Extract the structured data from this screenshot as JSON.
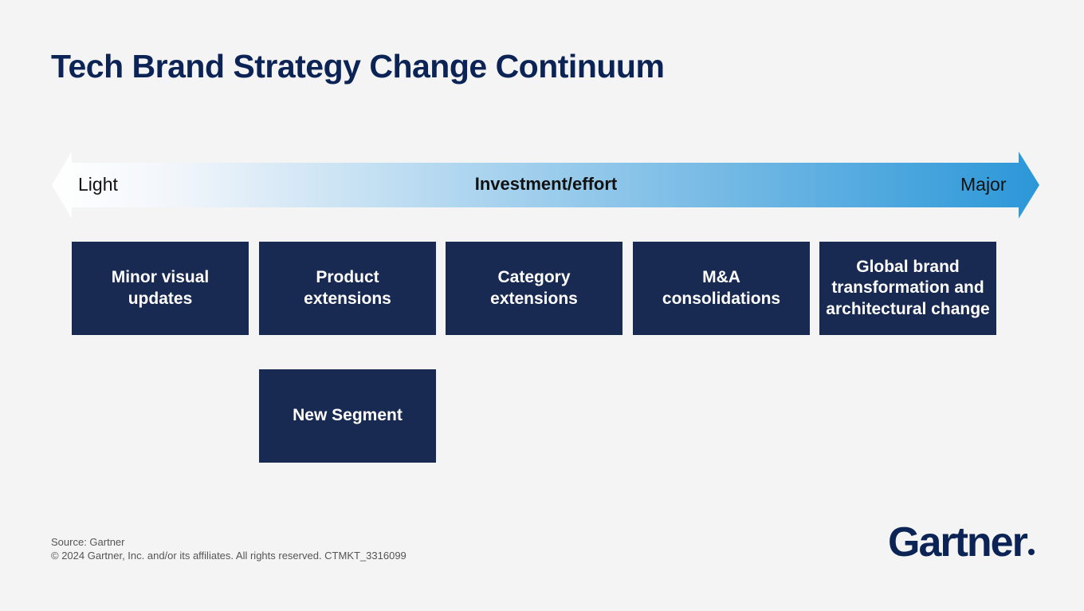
{
  "header": {
    "title": "Tech Brand Strategy Change Continuum"
  },
  "scale": {
    "left": "Light",
    "center": "Investment/effort",
    "right": "Major"
  },
  "boxes": [
    {
      "lines": [
        "Minor visual",
        "updates"
      ]
    },
    {
      "lines": [
        "Product",
        "extensions"
      ]
    },
    {
      "lines": [
        "Category",
        "extensions"
      ]
    },
    {
      "lines": [
        "M&A",
        "consolidations"
      ]
    },
    {
      "lines": [
        "Global brand",
        "transformation and",
        "architectural change"
      ]
    },
    {
      "lines": [
        "New Segment"
      ]
    }
  ],
  "footer": {
    "source": "Source: Gartner",
    "copyright": "© 2024 Gartner, Inc. and/or its affiliates. All rights reserved. CTMKT_3316099",
    "logo": "Gartner"
  }
}
